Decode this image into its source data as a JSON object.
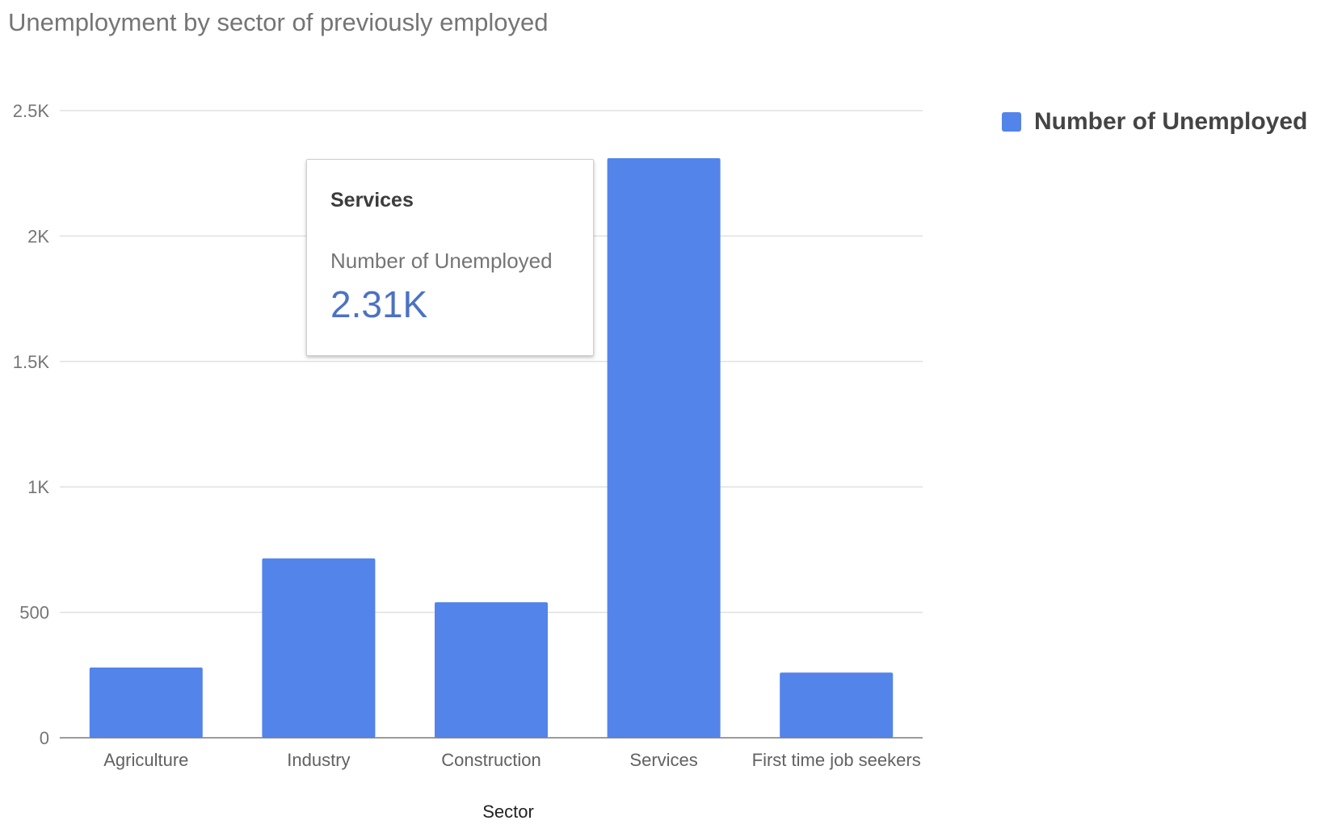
{
  "chart_data": {
    "type": "bar",
    "title": "Unemployment by sector of previously employed",
    "xlabel": "Sector",
    "ylabel": "",
    "categories": [
      "Agriculture",
      "Industry",
      "Construction",
      "Services",
      "First time job seekers"
    ],
    "series": [
      {
        "name": "Number of Unemployed",
        "color": "#5384ea",
        "values": [
          280,
          715,
          540,
          2310,
          260
        ]
      }
    ],
    "ylim": [
      0,
      2500
    ],
    "yticks": [
      {
        "value": 0,
        "label": "0"
      },
      {
        "value": 500,
        "label": "500"
      },
      {
        "value": 1000,
        "label": "1K"
      },
      {
        "value": 1500,
        "label": "1.5K"
      },
      {
        "value": 2000,
        "label": "2K"
      },
      {
        "value": 2500,
        "label": "2.5K"
      }
    ],
    "grid": true,
    "legend_position": "right"
  },
  "tooltip": {
    "title": "Services",
    "series_name": "Number of Unemployed",
    "value": "2.31K"
  }
}
